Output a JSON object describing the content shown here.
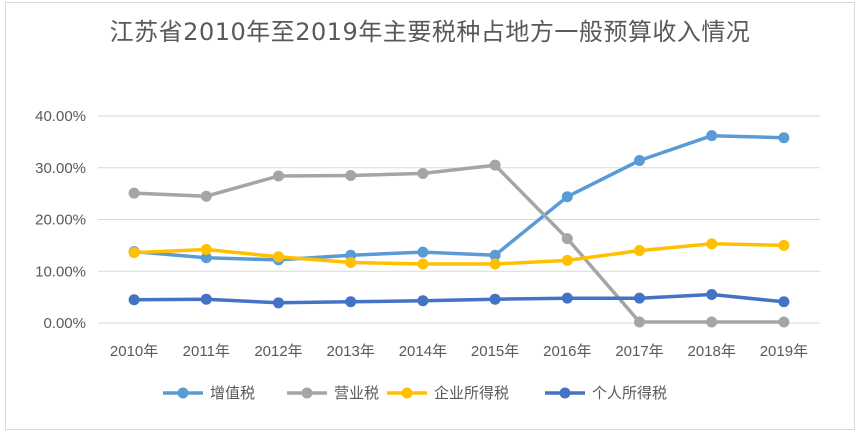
{
  "chart_data": {
    "type": "line",
    "title": "江苏省2010年至2019年主要税种占地方一般预算收入情况",
    "categories": [
      "2010年",
      "2011年",
      "2012年",
      "2013年",
      "2014年",
      "2015年",
      "2016年",
      "2017年",
      "2018年",
      "2019年"
    ],
    "ylim": [
      0,
      40
    ],
    "y_ticks": [
      "0.00%",
      "10.00%",
      "20.00%",
      "30.00%",
      "40.00%"
    ],
    "y_tick_values": [
      0,
      10,
      20,
      30,
      40
    ],
    "grid": true,
    "legend_position": "bottom",
    "series": [
      {
        "name": "增值税",
        "color": "#5b9bd5",
        "values": [
          13.8,
          12.6,
          12.2,
          13.1,
          13.7,
          13.1,
          24.4,
          31.4,
          36.2,
          35.8
        ]
      },
      {
        "name": "营业税",
        "color": "#a5a5a5",
        "values": [
          25.1,
          24.5,
          28.4,
          28.5,
          28.9,
          30.5,
          16.3,
          0.2,
          0.2,
          0.2
        ]
      },
      {
        "name": "企业所得税",
        "color": "#ffc000",
        "values": [
          13.6,
          14.2,
          12.8,
          11.7,
          11.4,
          11.4,
          12.1,
          14.0,
          15.3,
          15.0
        ]
      },
      {
        "name": "个人所得税",
        "color": "#4472c4",
        "values": [
          4.5,
          4.6,
          3.9,
          4.1,
          4.3,
          4.6,
          4.8,
          4.8,
          5.5,
          4.1
        ]
      }
    ]
  }
}
